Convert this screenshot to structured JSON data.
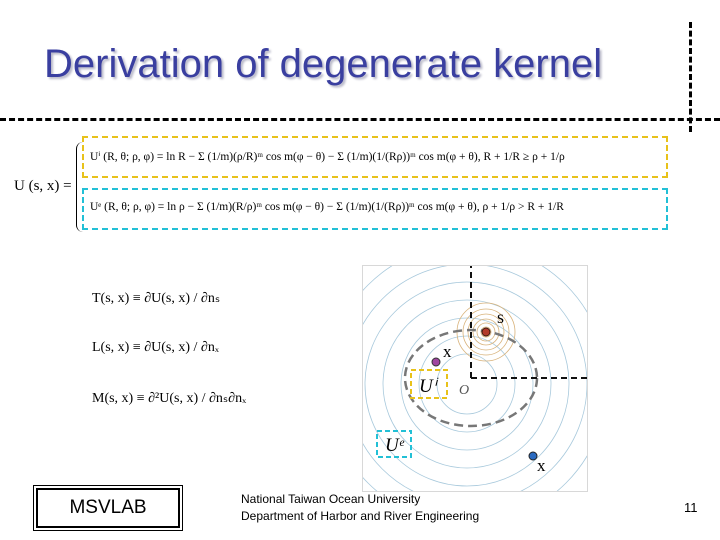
{
  "slide": {
    "title": "Derivation of degenerate kernel",
    "equations": {
      "lhs": "U (s, x) =",
      "interior": "Uⁱ (R, θ; ρ, φ) = ln R − Σ (1/m)(ρ/R)ᵐ cos m(φ − θ) − Σ (1/m)(1/(Rρ))ᵐ cos m(φ + θ),  R + 1/R ≥ ρ + 1/ρ",
      "exterior": "Uᵉ (R, θ; ρ, φ) = ln ρ − Σ (1/m)(R/ρ)ᵐ cos m(φ − θ) − Σ (1/m)(1/(Rρ))ᵐ cos m(φ + θ),  ρ + 1/ρ > R + 1/R"
    },
    "operators": {
      "T": "T(s, x) ≡ ∂U(s, x) / ∂nₛ",
      "L": "L(s, x) ≡ ∂U(s, x) / ∂nₓ",
      "M": "M(s, x) ≡ ∂²U(s, x) / ∂nₛ∂nₓ"
    },
    "figure": {
      "label_s": "s",
      "label_x_inner": "x",
      "label_x_outer": "x",
      "label_ui": "Uⁱ",
      "label_ue": "Uᵉ",
      "label_origin": "O"
    },
    "footer": {
      "lab": "MSVLAB",
      "university": "National Taiwan Ocean University",
      "department": "Department of Harbor and River Engineering",
      "page": "11"
    }
  }
}
